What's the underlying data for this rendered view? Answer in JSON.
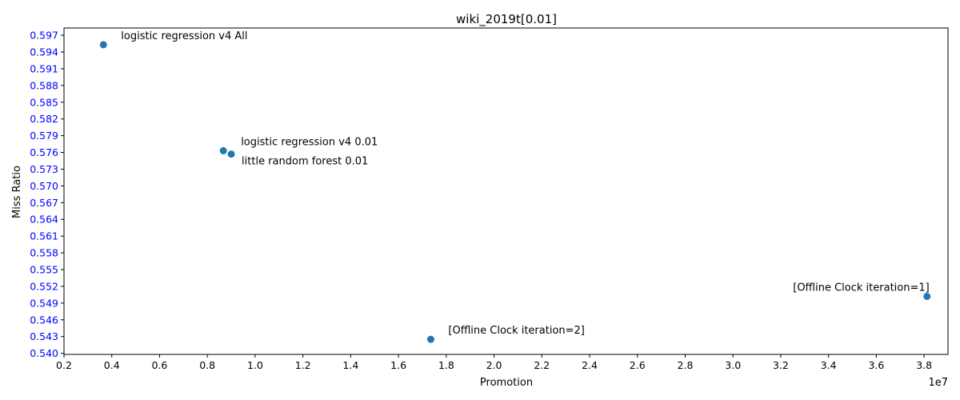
{
  "chart_data": {
    "type": "scatter",
    "title": "wiki_2019t[0.01]",
    "xlabel": "Promotion",
    "ylabel": "Miss Ratio",
    "x_offset_label": "1e7",
    "xlim": [
      0.2,
      3.9
    ],
    "ylim": [
      0.5398,
      0.5983
    ],
    "x_ticks": [
      0.2,
      0.4,
      0.6,
      0.8,
      1.0,
      1.2,
      1.4,
      1.6,
      1.8,
      2.0,
      2.2,
      2.4,
      2.6,
      2.8,
      3.0,
      3.2,
      3.4,
      3.6,
      3.8
    ],
    "x_tick_labels": [
      "0.2",
      "0.4",
      "0.6",
      "0.8",
      "1.0",
      "1.2",
      "1.4",
      "1.6",
      "1.8",
      "2.0",
      "2.2",
      "2.4",
      "2.6",
      "2.8",
      "3.0",
      "3.2",
      "3.4",
      "3.6",
      "3.8"
    ],
    "y_ticks": [
      0.54,
      0.543,
      0.546,
      0.549,
      0.552,
      0.555,
      0.558,
      0.561,
      0.564,
      0.567,
      0.57,
      0.573,
      0.576,
      0.579,
      0.582,
      0.585,
      0.588,
      0.591,
      0.594,
      0.597
    ],
    "y_tick_labels": [
      "0.540",
      "0.543",
      "0.546",
      "0.549",
      "0.552",
      "0.555",
      "0.558",
      "0.561",
      "0.564",
      "0.567",
      "0.570",
      "0.573",
      "0.576",
      "0.579",
      "0.582",
      "0.585",
      "0.588",
      "0.591",
      "0.594",
      "0.597"
    ],
    "y_tick_color": "#0000ff",
    "marker_color": "#1f77b4",
    "grid": false,
    "points": [
      {
        "x": 0.365,
        "y": 0.5953,
        "label": "logistic regression v4 All",
        "label_pos": "upper-right"
      },
      {
        "x": 0.867,
        "y": 0.5763,
        "label": "logistic regression v4 0.01",
        "label_pos": "upper-right"
      },
      {
        "x": 0.9,
        "y": 0.5757,
        "label": "little random forest 0.01",
        "label_pos": "lower-right"
      },
      {
        "x": 3.812,
        "y": 0.5502,
        "label": "[Offline Clock iteration=1]",
        "label_pos": "upper-left"
      },
      {
        "x": 1.735,
        "y": 0.5425,
        "label": "[Offline Clock iteration=2]",
        "label_pos": "upper-right"
      }
    ]
  }
}
